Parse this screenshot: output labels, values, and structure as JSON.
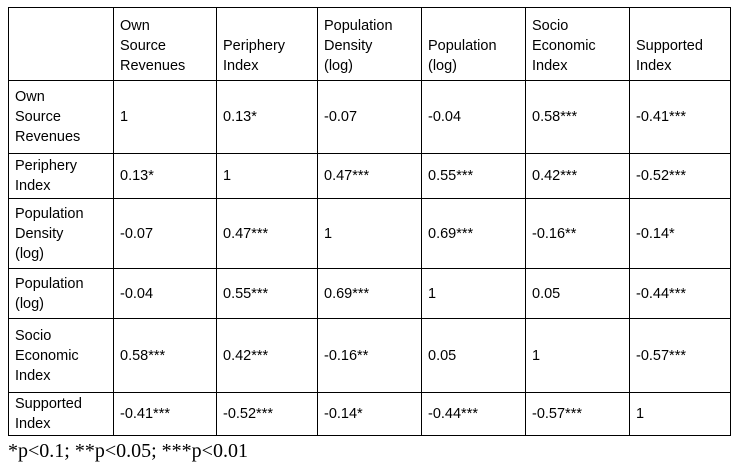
{
  "table": {
    "corner_label": "",
    "column_headers": [
      "Own\nSource\nRevenues",
      "Periphery\nIndex",
      "Population\nDensity\n(log)",
      "Population\n(log)",
      "Socio\nEconomic\nIndex",
      "Supported\nIndex"
    ],
    "rows": [
      {
        "label": "Own\nSource\nRevenues",
        "values": [
          "1",
          "0.13*",
          "-0.07",
          "-0.04",
          "0.58***",
          "-0.41***"
        ]
      },
      {
        "label": "Periphery\nIndex",
        "values": [
          "0.13*",
          "1",
          "0.47***",
          "0.55***",
          "0.42***",
          "-0.52***"
        ]
      },
      {
        "label": "Population\nDensity\n(log)",
        "values": [
          "-0.07",
          "0.47***",
          "1",
          "0.69***",
          "-0.16**",
          "-0.14*"
        ]
      },
      {
        "label": "Population\n(log)",
        "values": [
          "-0.04",
          "0.55***",
          "0.69***",
          "1",
          "0.05",
          "-0.44***"
        ]
      },
      {
        "label": "Socio\nEconomic\nIndex",
        "values": [
          "0.58***",
          "0.42***",
          "-0.16**",
          "0.05",
          "1",
          "-0.57***"
        ]
      },
      {
        "label": "Supported\nIndex",
        "values": [
          "-0.41***",
          "-0.52***",
          "-0.14*",
          "-0.44***",
          "-0.57***",
          "1"
        ]
      }
    ]
  },
  "footnote": "*p<0.1; **p<0.05; ***p<0.01",
  "colors": {
    "background": "#ffffff",
    "border": "#000000",
    "text": "#000000"
  },
  "chart_data": {
    "type": "table",
    "variables": [
      "Own Source Revenues",
      "Periphery Index",
      "Population Density (log)",
      "Population (log)",
      "Socio Economic Index",
      "Supported Index"
    ],
    "correlation_matrix": [
      [
        "1",
        "0.13*",
        "-0.07",
        "-0.04",
        "0.58***",
        "-0.41***"
      ],
      [
        "0.13*",
        "1",
        "0.47***",
        "0.55***",
        "0.42***",
        "-0.52***"
      ],
      [
        "-0.07",
        "0.47***",
        "1",
        "0.69***",
        "-0.16**",
        "-0.14*"
      ],
      [
        "-0.04",
        "0.55***",
        "0.69***",
        "1",
        "0.05",
        "-0.44***"
      ],
      [
        "0.58***",
        "0.42***",
        "-0.16**",
        "0.05",
        "1",
        "-0.57***"
      ],
      [
        "-0.41***",
        "-0.52***",
        "-0.14*",
        "-0.44***",
        "-0.57***",
        "1"
      ]
    ],
    "significance_note": "*p<0.1; **p<0.05; ***p<0.01"
  }
}
